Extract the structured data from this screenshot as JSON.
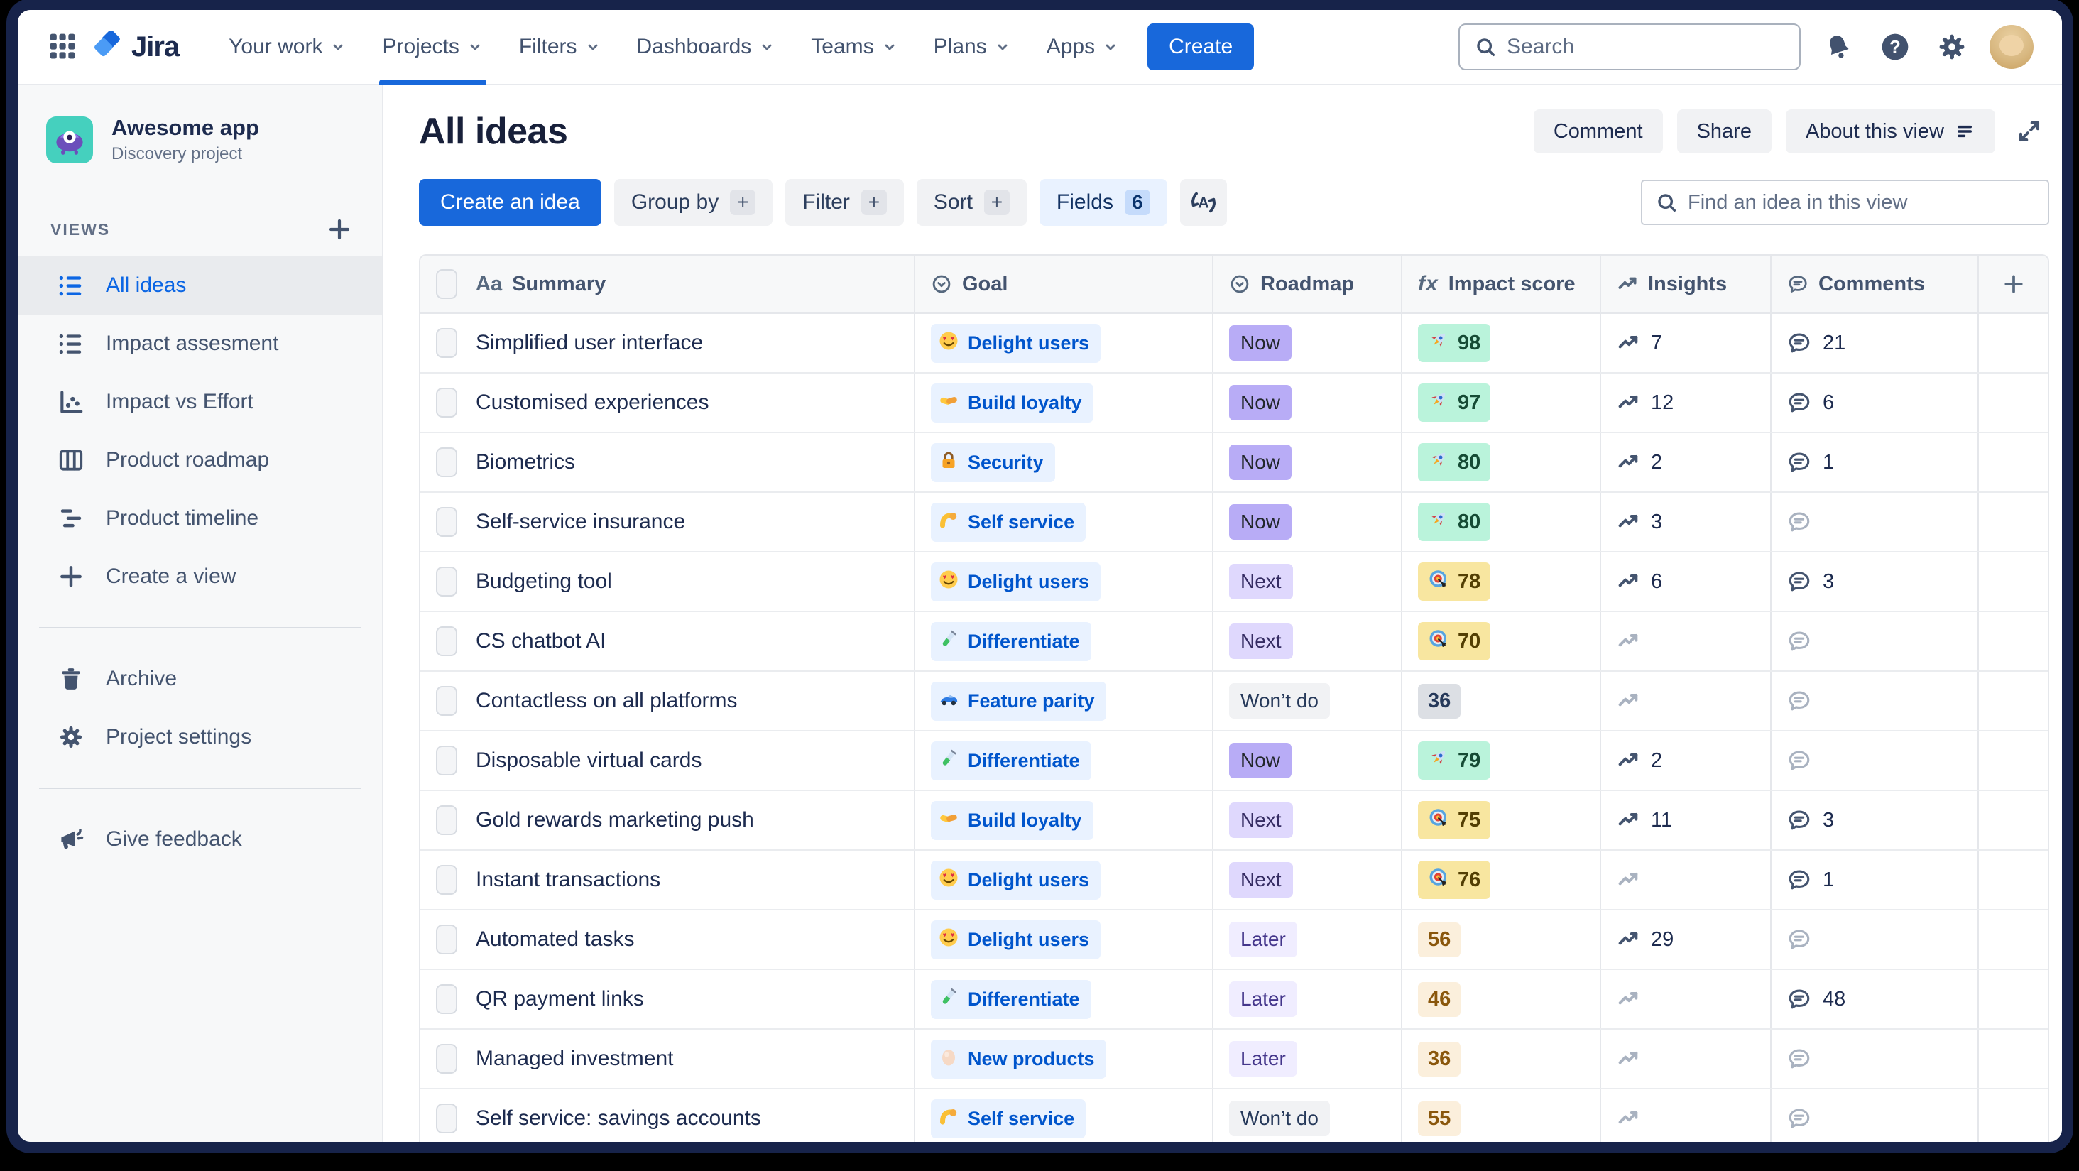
{
  "nav": {
    "logo_text": "Jira",
    "menu": [
      {
        "label": "Your work"
      },
      {
        "label": "Projects",
        "active": true
      },
      {
        "label": "Filters"
      },
      {
        "label": "Dashboards"
      },
      {
        "label": "Teams"
      },
      {
        "label": "Plans"
      },
      {
        "label": "Apps"
      }
    ],
    "create_label": "Create",
    "search_placeholder": "Search"
  },
  "sidebar": {
    "project": {
      "name": "Awesome app",
      "type": "Discovery project"
    },
    "views_label": "VIEWS",
    "views": [
      {
        "icon": "list",
        "label": "All ideas",
        "selected": true
      },
      {
        "icon": "list",
        "label": "Impact assesment"
      },
      {
        "icon": "scatter",
        "label": "Impact vs Effort"
      },
      {
        "icon": "columns",
        "label": "Product roadmap"
      },
      {
        "icon": "timeline",
        "label": "Product timeline"
      },
      {
        "icon": "plus",
        "label": "Create a view"
      }
    ],
    "tools": [
      {
        "icon": "trash",
        "label": "Archive"
      },
      {
        "icon": "gear",
        "label": "Project settings"
      }
    ],
    "footer": [
      {
        "icon": "megaphone",
        "label": "Give feedback"
      }
    ]
  },
  "header": {
    "title": "All ideas",
    "actions": [
      {
        "label": "Comment"
      },
      {
        "label": "Share"
      },
      {
        "label": "About this view",
        "icon": "lines"
      }
    ]
  },
  "toolbar": {
    "create_idea": "Create an idea",
    "buttons": [
      {
        "label": "Group by",
        "plus": true
      },
      {
        "label": "Filter",
        "plus": true
      },
      {
        "label": "Sort",
        "plus": true
      }
    ],
    "fields": {
      "label": "Fields",
      "count": "6"
    },
    "find_placeholder": "Find an idea in this view"
  },
  "table": {
    "columns": [
      {
        "icon": "aa",
        "label": "Summary"
      },
      {
        "icon": "select",
        "label": "Goal"
      },
      {
        "icon": "select",
        "label": "Roadmap"
      },
      {
        "icon": "fx",
        "label": "Impact score"
      },
      {
        "icon": "trend",
        "label": "Insights"
      },
      {
        "icon": "comment",
        "label": "Comments"
      }
    ],
    "rows": [
      {
        "summary": "Simplified user interface",
        "goal": {
          "emoji": "heart-eyes",
          "label": "Delight users"
        },
        "roadmap": {
          "label": "Now",
          "variant": "now"
        },
        "impact": {
          "value": "98",
          "variant": "green",
          "emoji": "rocket"
        },
        "insights": "7",
        "comments": "21"
      },
      {
        "summary": "Customised experiences",
        "goal": {
          "emoji": "handshake",
          "label": "Build loyalty"
        },
        "roadmap": {
          "label": "Now",
          "variant": "now"
        },
        "impact": {
          "value": "97",
          "variant": "green",
          "emoji": "rocket"
        },
        "insights": "12",
        "comments": "6"
      },
      {
        "summary": "Biometrics",
        "goal": {
          "emoji": "lock",
          "label": "Security"
        },
        "roadmap": {
          "label": "Now",
          "variant": "now"
        },
        "impact": {
          "value": "80",
          "variant": "green",
          "emoji": "rocket"
        },
        "insights": "2",
        "comments": "1"
      },
      {
        "summary": "Self-service insurance",
        "goal": {
          "emoji": "muscle",
          "label": "Self service"
        },
        "roadmap": {
          "label": "Now",
          "variant": "now"
        },
        "impact": {
          "value": "80",
          "variant": "green",
          "emoji": "rocket"
        },
        "insights": "3",
        "comments": null
      },
      {
        "summary": "Budgeting tool",
        "goal": {
          "emoji": "heart-eyes",
          "label": "Delight users"
        },
        "roadmap": {
          "label": "Next",
          "variant": "next"
        },
        "impact": {
          "value": "78",
          "variant": "yellow",
          "emoji": "target"
        },
        "insights": "6",
        "comments": "3"
      },
      {
        "summary": "CS chatbot AI",
        "goal": {
          "emoji": "test-tube",
          "label": "Differentiate"
        },
        "roadmap": {
          "label": "Next",
          "variant": "next"
        },
        "impact": {
          "value": "70",
          "variant": "yellow",
          "emoji": "target"
        },
        "insights": null,
        "comments": null
      },
      {
        "summary": "Contactless on all platforms",
        "goal": {
          "emoji": "race-car",
          "label": "Feature parity"
        },
        "roadmap": {
          "label": "Won’t do",
          "variant": "wontdo"
        },
        "impact": {
          "value": "36",
          "variant": "grey",
          "emoji": null
        },
        "insights": null,
        "comments": null
      },
      {
        "summary": "Disposable virtual cards",
        "goal": {
          "emoji": "test-tube",
          "label": "Differentiate"
        },
        "roadmap": {
          "label": "Now",
          "variant": "now"
        },
        "impact": {
          "value": "79",
          "variant": "green",
          "emoji": "rocket"
        },
        "insights": "2",
        "comments": null
      },
      {
        "summary": "Gold rewards marketing push",
        "goal": {
          "emoji": "handshake",
          "label": "Build loyalty"
        },
        "roadmap": {
          "label": "Next",
          "variant": "next"
        },
        "impact": {
          "value": "75",
          "variant": "yellow",
          "emoji": "target"
        },
        "insights": "11",
        "comments": "3"
      },
      {
        "summary": "Instant transactions",
        "goal": {
          "emoji": "heart-eyes",
          "label": "Delight users"
        },
        "roadmap": {
          "label": "Next",
          "variant": "next"
        },
        "impact": {
          "value": "76",
          "variant": "yellow",
          "emoji": "target"
        },
        "insights": null,
        "comments": "1"
      },
      {
        "summary": "Automated tasks",
        "goal": {
          "emoji": "heart-eyes",
          "label": "Delight users"
        },
        "roadmap": {
          "label": "Later",
          "variant": "later"
        },
        "impact": {
          "value": "56",
          "variant": "cream",
          "emoji": null
        },
        "insights": "29",
        "comments": null
      },
      {
        "summary": "QR payment links",
        "goal": {
          "emoji": "test-tube",
          "label": "Differentiate"
        },
        "roadmap": {
          "label": "Later",
          "variant": "later"
        },
        "impact": {
          "value": "46",
          "variant": "cream",
          "emoji": null
        },
        "insights": null,
        "comments": "48"
      },
      {
        "summary": "Managed investment",
        "goal": {
          "emoji": "egg",
          "label": "New products"
        },
        "roadmap": {
          "label": "Later",
          "variant": "later"
        },
        "impact": {
          "value": "36",
          "variant": "cream",
          "emoji": null
        },
        "insights": null,
        "comments": null
      },
      {
        "summary": "Self service: savings accounts",
        "goal": {
          "emoji": "muscle",
          "label": "Self service"
        },
        "roadmap": {
          "label": "Won’t do",
          "variant": "wontdo"
        },
        "impact": {
          "value": "55",
          "variant": "cream",
          "emoji": null
        },
        "insights": null,
        "comments": null
      }
    ]
  },
  "palette": {
    "brand_blue": "#1868DB",
    "goal_chip_bg": "#E9F2FF",
    "goal_chip_text": "#0055CC",
    "roadmap_now": "#B8ACF6",
    "roadmap_next": "#DFD8FD",
    "roadmap_later": "#F0EDFF",
    "roadmap_wontdo": "#F1F2F4",
    "score_green": "#BAF3DB",
    "score_yellow": "#F8E6A0",
    "score_grey": "#DCDFE4",
    "score_cream": "#FBEFDC",
    "sidebar_bg": "#F7F8F9",
    "project_icon_bg": "#45D0BE"
  }
}
